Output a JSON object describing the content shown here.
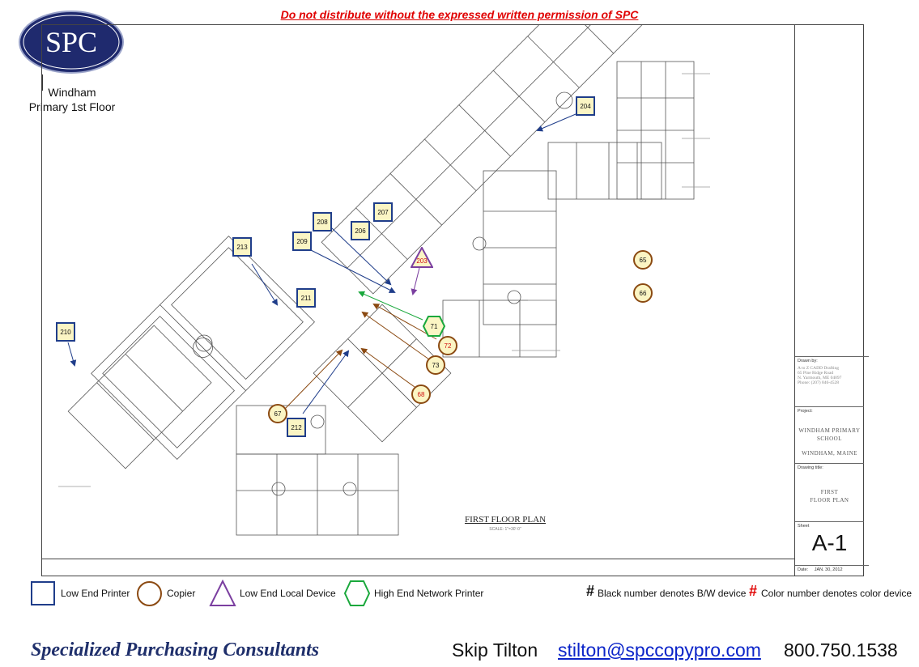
{
  "header": {
    "warning": "Do not distribute without the expressed written permission of SPC",
    "logo_text": "SPC",
    "floor_label_line1": "Windham",
    "floor_label_line2": "Primary 1st Floor"
  },
  "plan": {
    "title": "FIRST FLOOR PLAN",
    "scale": "SCALE: 1\"=30'-0\""
  },
  "title_block": {
    "drawn_by_label": "Drawn by:",
    "drawn_by_lines": [
      "A to Z CADD Drafting",
      "65 Pine Ridge Road",
      "N. Yarmouth, ME 04097",
      "Phone: (207) 846-4528"
    ],
    "project_label": "Project:",
    "project_lines": [
      "WINDHAM PRIMARY",
      "SCHOOL",
      "WINDHAM, MAINE"
    ],
    "drawing_title_label": "Drawing title:",
    "drawing_title_lines": [
      "FIRST",
      "FLOOR PLAN"
    ],
    "sheet_label": "Sheet",
    "sheet_value": "A-1",
    "date_label": "Date:",
    "date_value": "JAN. 30, 2012"
  },
  "markers": {
    "printers": [
      "204",
      "207",
      "208",
      "206",
      "209",
      "213",
      "211",
      "210",
      "212"
    ],
    "copiers": [
      "65",
      "66",
      "67",
      "68",
      "72",
      "73"
    ],
    "local_devices": [
      "203"
    ],
    "network_printers": [
      "71"
    ]
  },
  "legend": {
    "low_end_printer": "Low End Printer",
    "copier": "Copier",
    "low_end_local_device": "Low End Local Device",
    "high_end_network_printer": "High End Network Printer",
    "hash": "#",
    "bw_note": "Black number denotes B/W device",
    "color_note": "Color number denotes color device"
  },
  "footer": {
    "company": "Specialized Purchasing Consultants",
    "contact_name": "Skip Tilton",
    "email": "stilton@spccopypro.com",
    "phone": "800.750.1538"
  },
  "colors": {
    "printer": "#1f3d8a",
    "copier": "#8b4a12",
    "local_device": "#7b3fa0",
    "network_printer": "#1aa83c",
    "warning": "#e00000",
    "logo": "#1f2a6e"
  }
}
